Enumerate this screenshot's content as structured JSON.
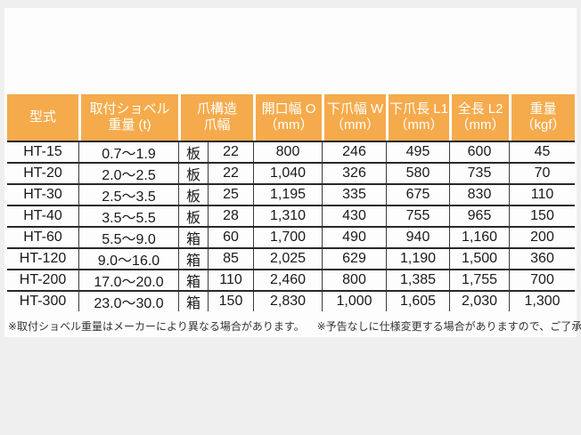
{
  "colors": {
    "page_background": "#EFEFEF",
    "panel_background": "#FDFDFD",
    "header_background": "#F5AB4C",
    "header_text": "#FFFFFF",
    "body_text": "#1A1A1A",
    "row_separator": "#282828",
    "column_separator": "#3C3C3C",
    "footnote_text": "#333333"
  },
  "spec_table": {
    "headers": [
      {
        "line1": "型式",
        "line2": ""
      },
      {
        "line1": "取付ショベル",
        "line2": "重量 (t)"
      },
      {
        "line1": "爪構造",
        "line2": "爪幅"
      },
      {
        "line1": "開口幅 O",
        "line2": "（mm）"
      },
      {
        "line1": "下爪幅 W",
        "line2": "（mm）"
      },
      {
        "line1": "下爪長 L1",
        "line2": "（mm）"
      },
      {
        "line1": "全長 L2",
        "line2": "（mm）"
      },
      {
        "line1": "重量",
        "line2": "（kgf）"
      }
    ],
    "rows": [
      [
        "HT-15",
        "0.7～1.9",
        "板",
        "22",
        "800",
        "246",
        "495",
        "600",
        "45"
      ],
      [
        "HT-20",
        "2.0～2.5",
        "板",
        "22",
        "1,040",
        "326",
        "580",
        "735",
        "70"
      ],
      [
        "HT-30",
        "2.5～3.5",
        "板",
        "25",
        "1,195",
        "335",
        "675",
        "830",
        "110"
      ],
      [
        "HT-40",
        "3.5～5.5",
        "板",
        "28",
        "1,310",
        "430",
        "755",
        "965",
        "150"
      ],
      [
        "HT-60",
        "5.5～9.0",
        "箱",
        "60",
        "1,700",
        "490",
        "940",
        "1,160",
        "200"
      ],
      [
        "HT-120",
        "9.0～16.0",
        "箱",
        "85",
        "2,025",
        "629",
        "1,190",
        "1,500",
        "360"
      ],
      [
        "HT-200",
        "17.0～20.0",
        "箱",
        "110",
        "2,460",
        "800",
        "1,385",
        "1,755",
        "700"
      ],
      [
        "HT-300",
        "23.0～30.0",
        "箱",
        "150",
        "2,830",
        "1,000",
        "1,605",
        "2,030",
        "1,300"
      ]
    ]
  },
  "footnotes": {
    "note1": "※取付ショベル重量はメーカーにより異なる場合があります。",
    "note2": "※予告なしに仕様変更する場合がありますので、ご了承下さい。"
  }
}
